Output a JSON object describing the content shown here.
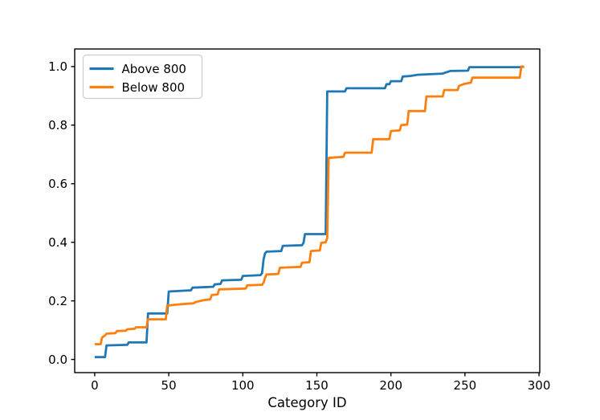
{
  "figure": {
    "background": "#ffffff"
  },
  "chart_data": {
    "type": "line",
    "subtype": "cumulative-step",
    "title": "",
    "xlabel": "Category ID",
    "ylabel": "",
    "xlim": [
      -13.5,
      300.5
    ],
    "ylim": [
      -0.045,
      1.06
    ],
    "grid": false,
    "xticks": {
      "values": [
        0,
        50,
        100,
        150,
        200,
        250,
        300
      ],
      "labels": [
        "0",
        "50",
        "100",
        "150",
        "200",
        "250",
        "300"
      ]
    },
    "yticks": {
      "values": [
        0.0,
        0.2,
        0.4,
        0.6,
        0.8,
        1.0
      ],
      "labels": [
        "0.0",
        "0.2",
        "0.4",
        "0.6",
        "0.8",
        "1.0"
      ]
    },
    "legend": {
      "position": "upper left"
    },
    "colors": {
      "above": "#1f77b4",
      "below": "#ff7f0e",
      "spine": "#000000",
      "legend_border": "#cccccc"
    },
    "series": [
      {
        "name": "Above 800",
        "color": "#1f77b4",
        "points": [
          [
            0,
            0.008
          ],
          [
            7,
            0.008
          ],
          [
            8,
            0.048
          ],
          [
            22,
            0.05
          ],
          [
            23,
            0.058
          ],
          [
            35,
            0.058
          ],
          [
            36,
            0.157
          ],
          [
            49,
            0.157
          ],
          [
            50,
            0.232
          ],
          [
            65,
            0.236
          ],
          [
            66,
            0.245
          ],
          [
            80,
            0.248
          ],
          [
            81,
            0.256
          ],
          [
            85,
            0.258
          ],
          [
            86,
            0.27
          ],
          [
            99,
            0.272
          ],
          [
            100,
            0.285
          ],
          [
            112,
            0.288
          ],
          [
            113,
            0.295
          ],
          [
            114,
            0.34
          ],
          [
            115,
            0.362
          ],
          [
            116,
            0.368
          ],
          [
            126,
            0.37
          ],
          [
            127,
            0.388
          ],
          [
            140,
            0.39
          ],
          [
            141,
            0.398
          ],
          [
            142,
            0.428
          ],
          [
            156,
            0.428
          ],
          [
            157,
            0.915
          ],
          [
            169,
            0.915
          ],
          [
            170,
            0.926
          ],
          [
            196,
            0.926
          ],
          [
            197,
            0.94
          ],
          [
            199,
            0.94
          ],
          [
            200,
            0.95
          ],
          [
            207,
            0.95
          ],
          [
            208,
            0.966
          ],
          [
            213,
            0.968
          ],
          [
            218,
            0.972
          ],
          [
            235,
            0.976
          ],
          [
            240,
            0.985
          ],
          [
            252,
            0.986
          ],
          [
            253,
            0.998
          ],
          [
            288,
            0.998
          ],
          [
            290,
            1.0
          ]
        ]
      },
      {
        "name": "Below 800",
        "color": "#ff7f0e",
        "points": [
          [
            0,
            0.052
          ],
          [
            4,
            0.052
          ],
          [
            5,
            0.075
          ],
          [
            7,
            0.082
          ],
          [
            8,
            0.088
          ],
          [
            14,
            0.09
          ],
          [
            15,
            0.097
          ],
          [
            21,
            0.098
          ],
          [
            22,
            0.103
          ],
          [
            27,
            0.105
          ],
          [
            28,
            0.11
          ],
          [
            35,
            0.11
          ],
          [
            36,
            0.137
          ],
          [
            48,
            0.137
          ],
          [
            49,
            0.184
          ],
          [
            55,
            0.187
          ],
          [
            62,
            0.19
          ],
          [
            67,
            0.192
          ],
          [
            68,
            0.196
          ],
          [
            74,
            0.203
          ],
          [
            78,
            0.205
          ],
          [
            79,
            0.22
          ],
          [
            83,
            0.222
          ],
          [
            84,
            0.239
          ],
          [
            102,
            0.242
          ],
          [
            103,
            0.253
          ],
          [
            113,
            0.255
          ],
          [
            114,
            0.262
          ],
          [
            115,
            0.278
          ],
          [
            116,
            0.29
          ],
          [
            124,
            0.292
          ],
          [
            125,
            0.313
          ],
          [
            139,
            0.316
          ],
          [
            140,
            0.33
          ],
          [
            145,
            0.332
          ],
          [
            146,
            0.37
          ],
          [
            152,
            0.372
          ],
          [
            153,
            0.398
          ],
          [
            156,
            0.4
          ],
          [
            157,
            0.415
          ],
          [
            158,
            0.688
          ],
          [
            168,
            0.692
          ],
          [
            169,
            0.706
          ],
          [
            187,
            0.706
          ],
          [
            188,
            0.752
          ],
          [
            199,
            0.752
          ],
          [
            200,
            0.78
          ],
          [
            206,
            0.782
          ],
          [
            207,
            0.8
          ],
          [
            211,
            0.802
          ],
          [
            212,
            0.848
          ],
          [
            223,
            0.848
          ],
          [
            224,
            0.898
          ],
          [
            235,
            0.898
          ],
          [
            236,
            0.92
          ],
          [
            245,
            0.92
          ],
          [
            246,
            0.934
          ],
          [
            249,
            0.94
          ],
          [
            254,
            0.945
          ],
          [
            255,
            0.962
          ],
          [
            287,
            0.962
          ],
          [
            288,
            1.0
          ],
          [
            290,
            1.0
          ]
        ]
      }
    ]
  }
}
